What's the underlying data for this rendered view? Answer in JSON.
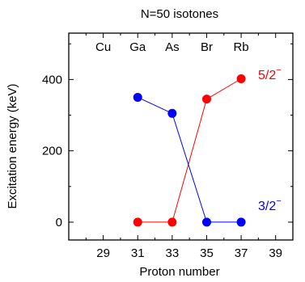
{
  "chart_data": {
    "type": "line",
    "title": "N=50 isotones",
    "xlabel": "Proton number",
    "ylabel": "Excitation energy (keV)",
    "xlim": [
      27,
      40
    ],
    "ylim": [
      -50,
      530
    ],
    "x_ticks": [
      29,
      31,
      33,
      35,
      37,
      39
    ],
    "x_tick_labels": [
      "29",
      "31",
      "33",
      "35",
      "37",
      "39"
    ],
    "y_ticks": [
      0,
      200,
      400
    ],
    "y_tick_labels": [
      "0",
      "200",
      "400"
    ],
    "grid": false,
    "element_labels": [
      {
        "x": 29,
        "text": "Cu"
      },
      {
        "x": 31,
        "text": "Ga"
      },
      {
        "x": 33,
        "text": "As"
      },
      {
        "x": 35,
        "text": "Br"
      },
      {
        "x": 37,
        "text": "Rb"
      }
    ],
    "series": [
      {
        "spin": "5/2",
        "parity": "−",
        "color": "#ff0000",
        "x": [
          31,
          33,
          35,
          37
        ],
        "y": [
          0,
          0,
          345,
          402
        ]
      },
      {
        "spin": "3/2",
        "parity": "−",
        "color": "#0000ff",
        "x": [
          31,
          33,
          35,
          37
        ],
        "y": [
          350,
          305,
          0,
          0
        ]
      }
    ]
  }
}
